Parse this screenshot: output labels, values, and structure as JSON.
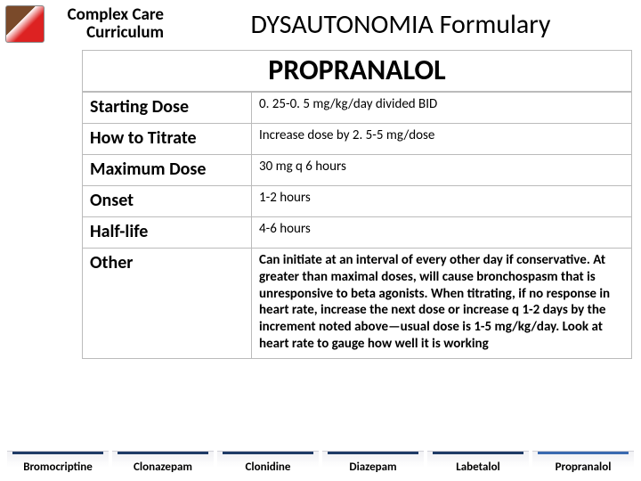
{
  "header": {
    "logo_line1": "Complex Care",
    "logo_line2": "Curriculum",
    "title": "DYSAUTONOMIA Formulary"
  },
  "drug": {
    "name": "PROPRANALOL",
    "rows": [
      {
        "label": "Starting Dose",
        "value": "0. 25-0. 5 mg/kg/day divided BID"
      },
      {
        "label": "How to Titrate",
        "value": "Increase dose by 2. 5-5 mg/dose"
      },
      {
        "label": "Maximum Dose",
        "value": "30 mg q 6 hours"
      },
      {
        "label": "Onset",
        "value": "1-2 hours"
      },
      {
        "label": "Half-life",
        "value": "4-6 hours"
      },
      {
        "label": "Other",
        "value": "Can initiate at an interval of every other day if conservative.  At greater than maximal doses, will cause bronchospasm that is unresponsive to beta agonists.  When titrating, if no response in heart rate, increase the next dose or increase q 1-2 days by the increment noted above—usual dose is 1-5 mg/kg/day.  Look at heart rate to gauge how well it is working",
        "bold": true
      }
    ]
  },
  "tabs": [
    {
      "label": "Bromocriptine"
    },
    {
      "label": "Clonazepam"
    },
    {
      "label": "Clonidine"
    },
    {
      "label": "Diazepam"
    },
    {
      "label": "Labetalol"
    },
    {
      "label": "Propranalol",
      "active": true
    }
  ],
  "colors": {
    "tab_bar": "#1f3b66",
    "tab_bar_active": "#3a6ab0",
    "border": "#bbbbbb",
    "text": "#000000",
    "background": "#ffffff"
  }
}
